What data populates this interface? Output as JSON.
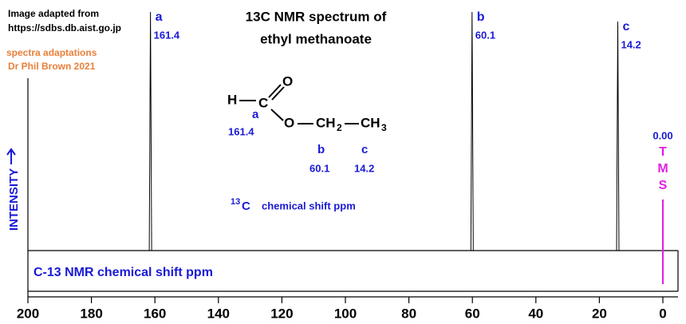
{
  "chart_data": {
    "type": "nmr",
    "title": [
      "13C NMR spectrum of",
      "ethyl methanoate"
    ],
    "credits": [
      "Image adapted from",
      "https://sdbs.db.aist.go.jp"
    ],
    "adaptation": [
      "spectra adaptations",
      "Dr Phil Brown 2021"
    ],
    "ylabel": "INTENSITY",
    "xlabel": "C-13  NMR chemical shift  ppm",
    "x": [
      161.4,
      60.1,
      14.2
    ],
    "values": [
      100,
      100,
      96
    ],
    "peak_names": [
      "a",
      "b",
      "c"
    ],
    "x_labels": [
      "161.4",
      "60.1",
      "14.2"
    ],
    "color": "#000000",
    "label_color": "#1a1ad6",
    "xlim": [
      200,
      0
    ],
    "ylim": [
      0,
      100
    ],
    "xticks": [
      200,
      180,
      160,
      140,
      120,
      100,
      80,
      60,
      40,
      20,
      0
    ],
    "reference": {
      "x": 0,
      "x_label": "0.00",
      "name": [
        "T",
        "M",
        "S"
      ],
      "color": "#e020e0"
    }
  },
  "structure": {
    "atoms": [
      "H",
      "C",
      "O",
      "O",
      "CH",
      "2",
      "CH",
      "3"
    ],
    "labels": [
      {
        "name": "a",
        "shift": "161.4"
      },
      {
        "name": "b",
        "shift": "60.1"
      },
      {
        "name": "c",
        "shift": "14.2"
      }
    ],
    "caption": [
      "13",
      "C",
      "chemical shift ppm"
    ]
  }
}
